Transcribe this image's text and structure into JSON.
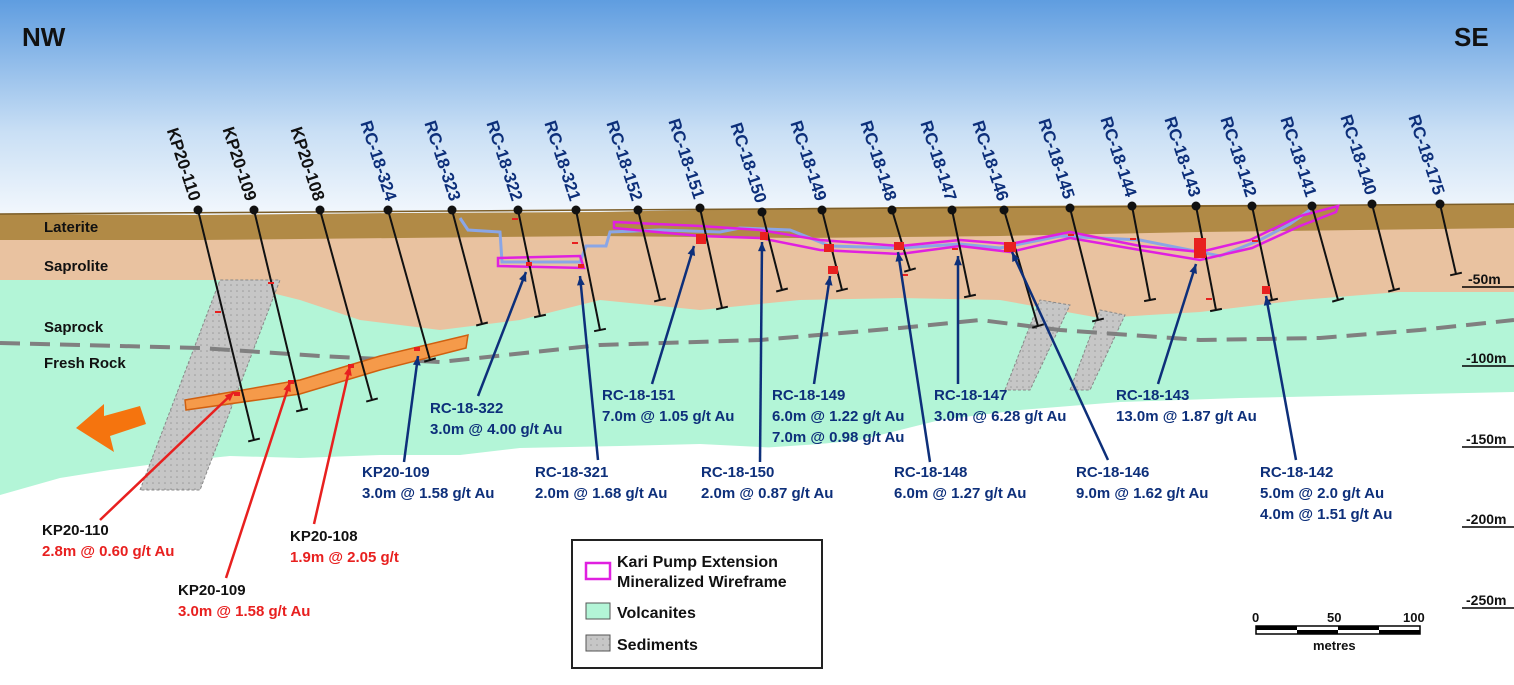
{
  "orientation": {
    "left": "NW",
    "right": "SE"
  },
  "layers": [
    "Laterite",
    "Saprolite",
    "Saprock",
    "Fresh Rock"
  ],
  "depths": [
    "-50m",
    "-100m",
    "-150m",
    "-200m",
    "-250m"
  ],
  "holes": [
    {
      "name": "KP20-110",
      "series": "KP"
    },
    {
      "name": "KP20-109",
      "series": "KP"
    },
    {
      "name": "KP20-108",
      "series": "KP"
    },
    {
      "name": "RC-18-324",
      "series": "RC"
    },
    {
      "name": "RC-18-323",
      "series": "RC"
    },
    {
      "name": "RC-18-322",
      "series": "RC"
    },
    {
      "name": "RC-18-321",
      "series": "RC"
    },
    {
      "name": "RC-18-152",
      "series": "RC"
    },
    {
      "name": "RC-18-151",
      "series": "RC"
    },
    {
      "name": "RC-18-150",
      "series": "RC"
    },
    {
      "name": "RC-18-149",
      "series": "RC"
    },
    {
      "name": "RC-18-148",
      "series": "RC"
    },
    {
      "name": "RC-18-147",
      "series": "RC"
    },
    {
      "name": "RC-18-146",
      "series": "RC"
    },
    {
      "name": "RC-18-145",
      "series": "RC"
    },
    {
      "name": "RC-18-144",
      "series": "RC"
    },
    {
      "name": "RC-18-143",
      "series": "RC"
    },
    {
      "name": "RC-18-142",
      "series": "RC"
    },
    {
      "name": "RC-18-141",
      "series": "RC"
    },
    {
      "name": "RC-18-140",
      "series": "RC"
    },
    {
      "name": "RC-18-175",
      "series": "RC"
    }
  ],
  "intercepts": [
    {
      "hole": "KP20-109",
      "lines": [
        "3.0m @ 1.58 g/t Au"
      ],
      "color": "#0d2f7a"
    },
    {
      "hole": "RC-18-322",
      "lines": [
        "3.0m @ 4.00 g/t Au"
      ],
      "color": "#0d2f7a"
    },
    {
      "hole": "RC-18-321",
      "lines": [
        "2.0m @ 1.68 g/t Au"
      ],
      "color": "#0d2f7a"
    },
    {
      "hole": "RC-18-151",
      "lines": [
        "7.0m @ 1.05 g/t Au"
      ],
      "color": "#0d2f7a"
    },
    {
      "hole": "RC-18-150",
      "lines": [
        "2.0m @ 0.87 g/t Au"
      ],
      "color": "#0d2f7a"
    },
    {
      "hole": "RC-18-149",
      "lines": [
        "6.0m @ 1.22 g/t Au",
        "7.0m @ 0.98 g/t Au"
      ],
      "color": "#0d2f7a"
    },
    {
      "hole": "RC-18-148",
      "lines": [
        "6.0m @ 1.27 g/t Au"
      ],
      "color": "#0d2f7a"
    },
    {
      "hole": "RC-18-147",
      "lines": [
        "3.0m @ 6.28 g/t Au"
      ],
      "color": "#0d2f7a"
    },
    {
      "hole": "RC-18-146",
      "lines": [
        "9.0m @ 1.62 g/t Au"
      ],
      "color": "#0d2f7a"
    },
    {
      "hole": "RC-18-143",
      "lines": [
        "13.0m @ 1.87 g/t Au"
      ],
      "color": "#0d2f7a"
    },
    {
      "hole": "RC-18-142",
      "lines": [
        "5.0m @ 2.0 g/t Au",
        "4.0m @ 1.51 g/t Au"
      ],
      "color": "#0d2f7a"
    },
    {
      "hole": "KP20-110",
      "lines": [
        "2.8m @ 0.60 g/t Au"
      ],
      "color": "#e8201f"
    },
    {
      "hole": "KP20-109",
      "lines": [
        "3.0m @ 1.58 g/t Au"
      ],
      "color": "#e8201f"
    },
    {
      "hole": "KP20-108",
      "lines": [
        "1.9m @ 2.05 g/t"
      ],
      "color": "#e8201f"
    }
  ],
  "legend": {
    "items": [
      {
        "label": "Kari Pump Extension\nMineralized Wireframe",
        "swatch": "wireframe"
      },
      {
        "label": "Volcanites",
        "swatch": "#b3f5d7"
      },
      {
        "label": "Sediments",
        "swatch": "#c6c6c6"
      }
    ]
  },
  "scale_bar": {
    "ticks": [
      "0",
      "50",
      "100"
    ],
    "unit": "metres"
  },
  "colors": {
    "sky_top": "#5f9de0",
    "laterite": "#b18a46",
    "saprolite": "#e9c2a0",
    "volcanites": "#b3f5d7",
    "sediments": "#c6c6c6",
    "wireframe": "#e020e0",
    "kp_orebody": "#f59a4a",
    "rc_label": "#0d2f7a",
    "kp_highlight": "#e8201f",
    "arrow": "#f5740e"
  }
}
